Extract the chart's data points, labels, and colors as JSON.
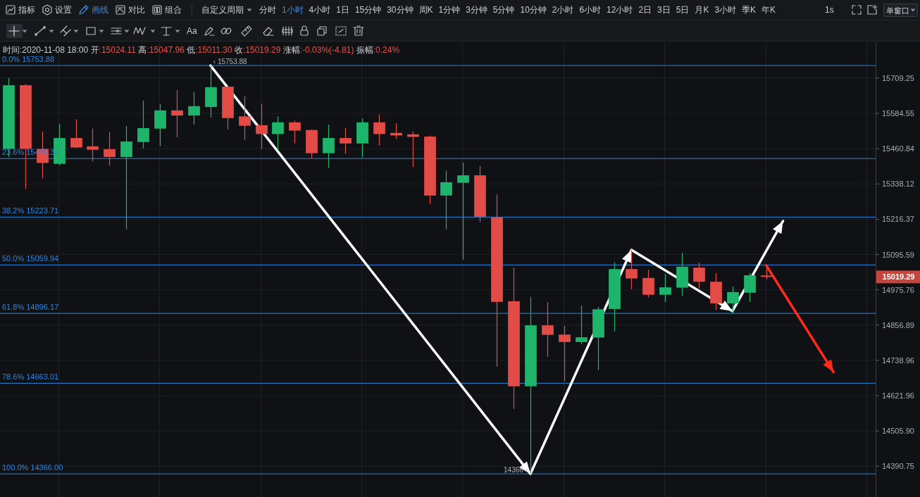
{
  "chart_data": {
    "type": "candlestick",
    "subtitle": "时间:2020-11-08 18:00 开:15024.11 高:15047.96 低:15011.30 收:15019.29 涨幅:-0.03%(-4.81) 振幅:0.24%",
    "categories": [
      null,
      null,
      null,
      null,
      null,
      null,
      null,
      null,
      null,
      null,
      null,
      null,
      null,
      null,
      null,
      null,
      null,
      null,
      null,
      null,
      null,
      null,
      null,
      null,
      null,
      null,
      null,
      null,
      null,
      null,
      null,
      null,
      null,
      null,
      null,
      null,
      null,
      null,
      null,
      null,
      null,
      null,
      null,
      null,
      null,
      null,
      null,
      null,
      null,
      null,
      null,
      null
    ],
    "ohlc": [
      [
        15460,
        15710,
        15432,
        15684
      ],
      [
        15684,
        15689,
        15321,
        15460
      ],
      [
        15460,
        15521,
        15358,
        15411
      ],
      [
        15408,
        15548,
        15403,
        15498
      ],
      [
        15498,
        15564,
        15463,
        15465
      ],
      [
        15469,
        15531,
        15417,
        15457
      ],
      [
        15459,
        15519,
        15401,
        15432
      ],
      [
        15432,
        15540,
        15182,
        15486
      ],
      [
        15484,
        15630,
        15462,
        15533
      ],
      [
        15531,
        15617,
        15470,
        15595
      ],
      [
        15595,
        15667,
        15501,
        15577
      ],
      [
        15577,
        15661,
        15545,
        15610
      ],
      [
        15607,
        15753.88,
        15570,
        15677
      ],
      [
        15679,
        15685,
        15528,
        15568
      ],
      [
        15574,
        15646,
        15492,
        15541
      ],
      [
        15543,
        15619,
        15460,
        15512
      ],
      [
        15512,
        15574,
        15456,
        15553
      ],
      [
        15553,
        15559,
        15479,
        15524
      ],
      [
        15526,
        15528,
        15427,
        15445
      ],
      [
        15445,
        15545,
        15394,
        15498
      ],
      [
        15498,
        15534,
        15443,
        15479
      ],
      [
        15479,
        15567,
        15430,
        15553
      ],
      [
        15553,
        15581,
        15472,
        15512
      ],
      [
        15516,
        15550,
        15495,
        15507
      ],
      [
        15511,
        15521,
        15397,
        15502
      ],
      [
        15503,
        15507,
        15268,
        15298
      ],
      [
        15298,
        15384,
        15182,
        15344
      ],
      [
        15342,
        15412,
        15078,
        15368
      ],
      [
        15368,
        15400,
        15206,
        15225
      ],
      [
        15223,
        15302,
        14718,
        14935
      ],
      [
        14937,
        15051,
        14578,
        14653
      ],
      [
        14653,
        14952,
        14366,
        14856
      ],
      [
        14856,
        14934,
        14751,
        14824
      ],
      [
        14825,
        14854,
        14669,
        14800
      ],
      [
        14800,
        14922,
        14792,
        14816
      ],
      [
        14815,
        14918,
        14707,
        14910
      ],
      [
        14911,
        15069,
        14836,
        15046
      ],
      [
        15046,
        15111,
        14978,
        15014
      ],
      [
        15016,
        15044,
        14950,
        14959
      ],
      [
        14959,
        15029,
        14935,
        14984
      ],
      [
        14983,
        15102,
        14955,
        15054
      ],
      [
        15051,
        15068,
        14980,
        15003
      ],
      [
        15003,
        15032,
        14908,
        14930
      ],
      [
        14930,
        14987,
        14894,
        14968
      ],
      [
        14966,
        15032,
        14935,
        15025
      ],
      [
        15024.11,
        15047.96,
        15011.3,
        15019.29
      ],
      null,
      null,
      null,
      null,
      null,
      null
    ],
    "series": [
      {
        "type": "line",
        "color": "#ffffff",
        "values": [
          null,
          null,
          null,
          null,
          null,
          null,
          null,
          null,
          null,
          null,
          null,
          null,
          15753.88,
          null,
          null,
          null,
          null,
          null,
          null,
          null,
          null,
          null,
          null,
          null,
          null,
          null,
          null,
          null,
          null,
          null,
          null,
          14366,
          null,
          null,
          null,
          null,
          null,
          15111,
          null,
          null,
          null,
          null,
          null,
          14904,
          null,
          null,
          15210,
          null,
          null,
          null,
          null,
          null
        ]
      },
      {
        "type": "line",
        "color": "#ff2a1a",
        "values": [
          null,
          null,
          null,
          null,
          null,
          null,
          null,
          null,
          null,
          null,
          null,
          null,
          null,
          null,
          null,
          null,
          null,
          null,
          null,
          null,
          null,
          null,
          null,
          null,
          null,
          null,
          null,
          null,
          null,
          null,
          null,
          null,
          null,
          null,
          null,
          null,
          null,
          null,
          null,
          null,
          null,
          null,
          null,
          null,
          null,
          15059,
          null,
          null,
          null,
          14700,
          null,
          null
        ]
      }
    ],
    "ylim": [
      14291,
      15837
    ],
    "yticks": [
      15709.25,
      15584.55,
      15460.84,
      15338.12,
      15216.37,
      15095.59,
      14975.76,
      14856.89,
      14738.96,
      14621.96,
      {
        "value": 14505.9,
        "label": "14505.90"
      },
      14390.75
    ],
    "log": true,
    "grid": true,
    "ref_lines": [
      {
        "axis": "y",
        "value": 15753.88,
        "label": "0.0% 15753.88",
        "color": "#2b87e3"
      },
      {
        "axis": "y",
        "value": 15426.34,
        "label": "23.6% 15426.34",
        "color": "#2b87e3"
      },
      {
        "axis": "y",
        "value": 15223.71,
        "label": "38.2% 15223.71",
        "color": "#2b87e3"
      },
      {
        "axis": "y",
        "value": 15059.94,
        "label": "50.0% 15059.94",
        "color": "#2b87e3"
      },
      {
        "axis": "y",
        "value": 14896.17,
        "label": "61.8% 14896.17",
        "color": "#2b87e3"
      },
      {
        "axis": "y",
        "value": 14663.01,
        "label": "78.6% 14663.01",
        "color": "#2b87e3"
      },
      {
        "axis": "y",
        "value": 14366,
        "label": "100.0% 14366.00",
        "color": "#2b87e3"
      }
    ],
    "annotations": [
      {
        "text": "‹ 15753.88",
        "y": 15753.88
      },
      {
        "text": "14366 ›",
        "y": 14366
      },
      "15019.29",
      "指标",
      "设置",
      "画线",
      "对比",
      "组合",
      "自定义周期",
      "分时",
      "1小时",
      "4小时",
      "1日",
      "15分钟",
      "30分钟",
      "周K",
      "1分钟",
      "3分钟",
      "5分钟",
      "10分钟",
      "2小时",
      "6小时",
      "12小时",
      "2日",
      "3日",
      "5日",
      "月K",
      "3小时",
      "季K",
      "年K",
      "1s",
      "单窗口",
      "Aa"
    ]
  }
}
